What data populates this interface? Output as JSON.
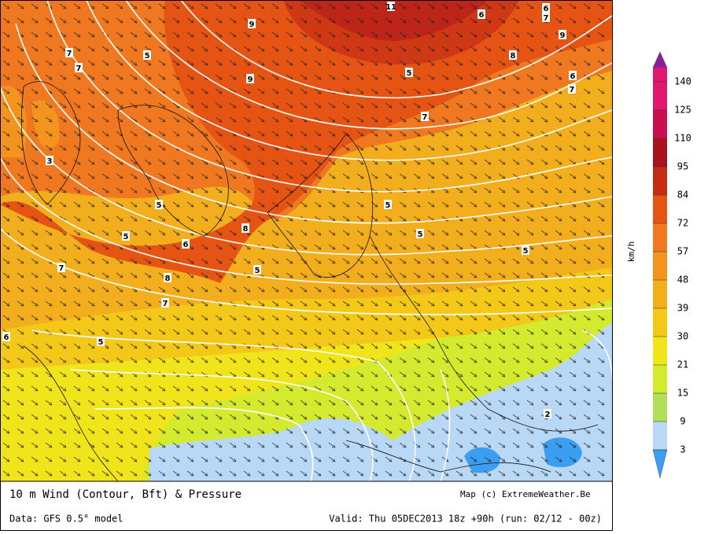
{
  "map": {
    "contour_labels": [
      "11",
      "9",
      "9",
      "9",
      "8",
      "7",
      "7",
      "5",
      "5",
      "6",
      "6",
      "7",
      "7",
      "5",
      "5",
      "5",
      "8",
      "8",
      "7",
      "6",
      "5",
      "5",
      "3",
      "2",
      "6",
      "7",
      "6",
      "5",
      "5",
      "7"
    ]
  },
  "legend": {
    "unit": "km/h",
    "levels": [
      140,
      125,
      110,
      95,
      84,
      72,
      57,
      48,
      39,
      30,
      21,
      15,
      9,
      3
    ],
    "colors": [
      "#8c1e9c",
      "#e0186e",
      "#c8104e",
      "#a8141e",
      "#c42c14",
      "#e65414",
      "#f07820",
      "#f2941e",
      "#f2ae1c",
      "#f4c818",
      "#f0e41a",
      "#d4ea2e",
      "#b2df5a",
      "#b8d8f6",
      "#3c9ef0"
    ]
  },
  "footer": {
    "title": "10 m Wind (Contour, Bft) & Pressure",
    "credit": "Map (c) ExtremeWeather.Be",
    "source": "Data: GFS 0.5° model",
    "valid": "Valid: Thu 05DEC2013 18z +90h (run: 02/12 - 00z)"
  }
}
